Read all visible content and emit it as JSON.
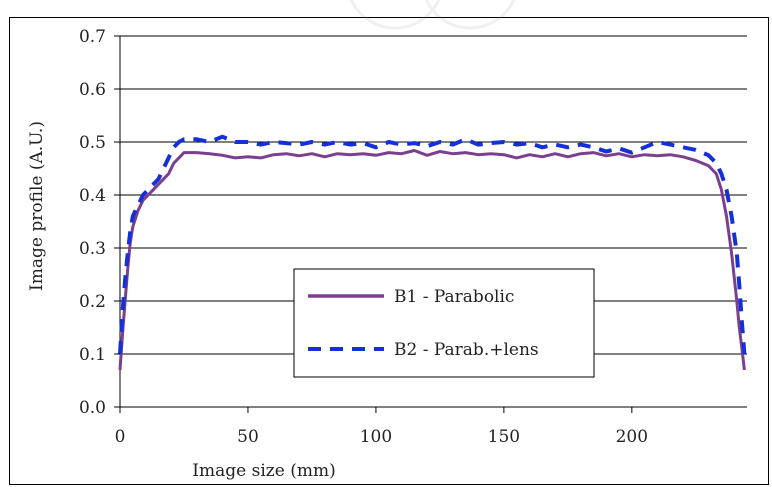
{
  "chart_data": {
    "type": "line",
    "title": "",
    "xlabel": "Image size (mm)",
    "ylabel": "Image profile (A.U.)",
    "xlim": [
      0,
      245
    ],
    "ylim": [
      0,
      0.7
    ],
    "x_ticks": [
      "0",
      "50",
      "100",
      "150",
      "200"
    ],
    "x_tick_values": [
      0,
      50,
      100,
      150,
      200
    ],
    "y_ticks": [
      "0.0",
      "0.1",
      "0.2",
      "0.3",
      "0.4",
      "0.5",
      "0.6",
      "0.7"
    ],
    "y_tick_values": [
      0,
      0.1,
      0.2,
      0.3,
      0.4,
      0.5,
      0.6,
      0.7
    ],
    "grid": "horizontal",
    "legend_position": "center",
    "series": [
      {
        "name": "B1 - Parabolic",
        "color": "#7b3f8f",
        "style": "solid",
        "x": [
          0,
          1,
          2,
          3,
          4,
          5,
          7,
          9,
          11,
          13,
          15,
          17,
          19,
          21,
          23,
          25,
          30,
          35,
          40,
          45,
          50,
          55,
          60,
          65,
          70,
          75,
          80,
          85,
          90,
          95,
          100,
          105,
          110,
          115,
          120,
          125,
          130,
          135,
          140,
          145,
          150,
          155,
          160,
          165,
          170,
          175,
          180,
          185,
          190,
          195,
          200,
          205,
          210,
          215,
          220,
          225,
          230,
          233,
          235,
          237,
          239,
          241,
          242,
          243,
          244
        ],
        "y": [
          0.07,
          0.14,
          0.2,
          0.26,
          0.31,
          0.34,
          0.37,
          0.39,
          0.4,
          0.41,
          0.42,
          0.43,
          0.44,
          0.46,
          0.47,
          0.48,
          0.48,
          0.478,
          0.475,
          0.47,
          0.472,
          0.47,
          0.476,
          0.478,
          0.474,
          0.478,
          0.472,
          0.478,
          0.476,
          0.478,
          0.475,
          0.48,
          0.478,
          0.484,
          0.475,
          0.482,
          0.478,
          0.48,
          0.476,
          0.478,
          0.476,
          0.47,
          0.476,
          0.472,
          0.478,
          0.472,
          0.478,
          0.48,
          0.474,
          0.478,
          0.472,
          0.476,
          0.474,
          0.476,
          0.472,
          0.465,
          0.455,
          0.44,
          0.41,
          0.36,
          0.29,
          0.2,
          0.15,
          0.11,
          0.07
        ]
      },
      {
        "name": "B2 - Parab.+lens",
        "color": "#1530d6",
        "style": "dashed",
        "x": [
          0,
          1,
          2,
          3,
          4,
          5,
          7,
          9,
          11,
          13,
          15,
          17,
          19,
          21,
          23,
          25,
          30,
          35,
          40,
          45,
          50,
          55,
          60,
          65,
          70,
          75,
          80,
          85,
          90,
          95,
          100,
          105,
          110,
          115,
          120,
          125,
          130,
          135,
          140,
          145,
          150,
          155,
          160,
          165,
          170,
          175,
          180,
          185,
          190,
          195,
          200,
          205,
          210,
          215,
          220,
          225,
          230,
          233,
          235,
          237,
          239,
          241,
          242,
          243,
          244
        ],
        "y": [
          0.1,
          0.18,
          0.24,
          0.29,
          0.33,
          0.36,
          0.38,
          0.4,
          0.41,
          0.42,
          0.43,
          0.45,
          0.47,
          0.49,
          0.5,
          0.505,
          0.505,
          0.5,
          0.51,
          0.5,
          0.5,
          0.495,
          0.5,
          0.498,
          0.495,
          0.5,
          0.495,
          0.5,
          0.495,
          0.498,
          0.49,
          0.5,
          0.495,
          0.498,
          0.492,
          0.5,
          0.495,
          0.505,
          0.495,
          0.498,
          0.5,
          0.495,
          0.498,
          0.49,
          0.495,
          0.49,
          0.495,
          0.49,
          0.482,
          0.488,
          0.48,
          0.49,
          0.5,
          0.495,
          0.49,
          0.485,
          0.475,
          0.46,
          0.44,
          0.41,
          0.36,
          0.29,
          0.23,
          0.16,
          0.1
        ]
      }
    ]
  }
}
